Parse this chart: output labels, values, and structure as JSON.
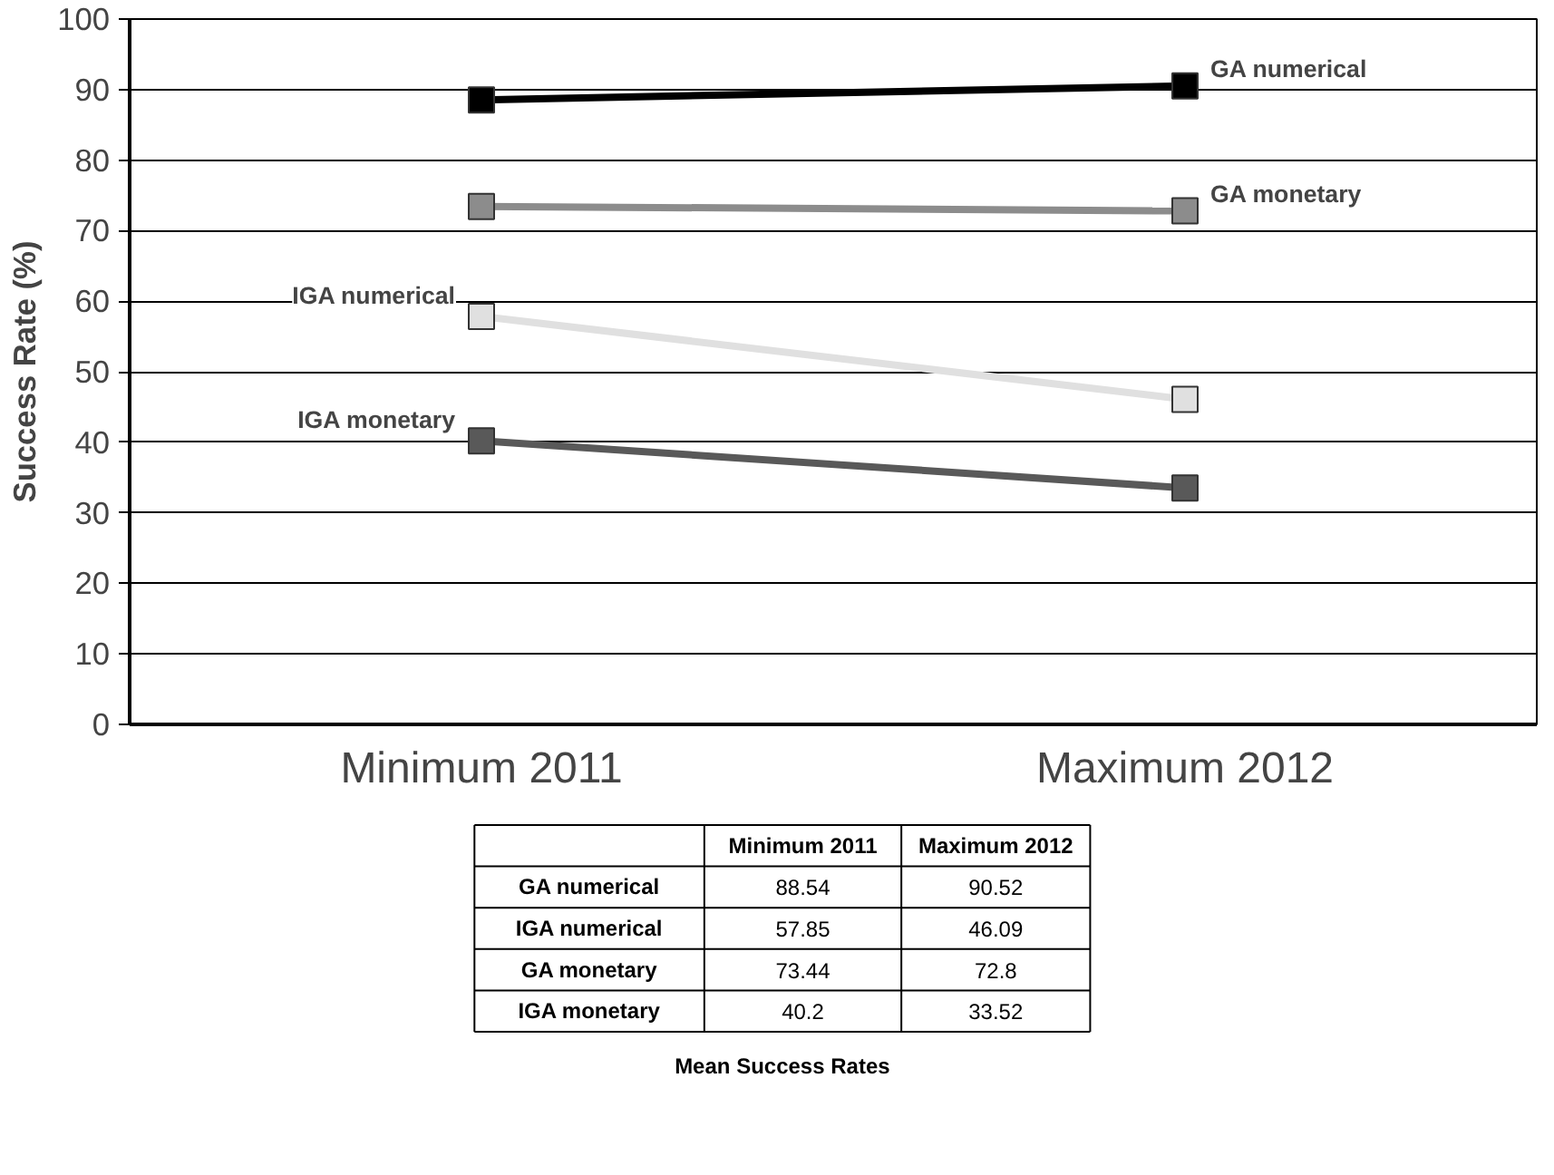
{
  "chart_data": {
    "type": "line",
    "ylabel": "Success Rate (%)",
    "categories": [
      "Minimum 2011",
      "Maximum 2012"
    ],
    "series": [
      {
        "name": "GA numerical",
        "color": "#000000",
        "values": [
          88.54,
          90.52
        ]
      },
      {
        "name": "IGA numerical",
        "color": "#e0e0e0",
        "values": [
          57.85,
          46.09
        ]
      },
      {
        "name": "GA monetary",
        "color": "#8c8c8c",
        "values": [
          73.44,
          72.8
        ]
      },
      {
        "name": "IGA monetary",
        "color": "#595959",
        "values": [
          40.2,
          33.52
        ]
      }
    ],
    "ylim": [
      0,
      100
    ],
    "yticks": [
      0,
      10,
      20,
      30,
      40,
      50,
      60,
      70,
      80,
      90,
      100
    ],
    "grid": "y",
    "marker": "square",
    "line_style": "solid",
    "data_labels": true,
    "annotations": [
      "Mean Success Rates"
    ]
  }
}
